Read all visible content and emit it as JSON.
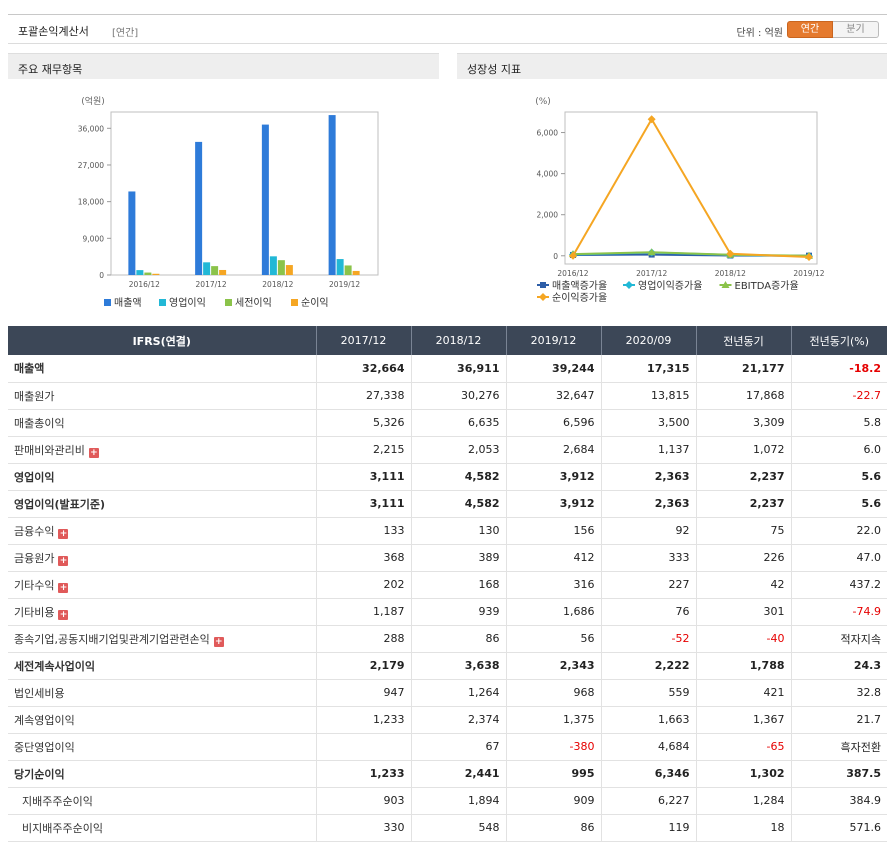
{
  "header": {
    "title": "포괄손익계산서",
    "subtitle": "[연간]",
    "unit_label": "단위 : 억원",
    "toggle_annual": "연간",
    "toggle_quarter": "분기"
  },
  "left_panel_title": "주요 재무항목",
  "right_panel_title": "성장성 지표",
  "chart_data": [
    {
      "type": "bar",
      "ylabel": "(억원)",
      "categories": [
        "2016/12",
        "2017/12",
        "2018/12",
        "2019/12"
      ],
      "ylim": [
        0,
        40000
      ],
      "yticks": [
        0,
        9000,
        18000,
        27000,
        36000
      ],
      "ytick_labels": [
        "0",
        "9,000",
        "18,000",
        "27,000",
        "36,000"
      ],
      "legend_position": "bottom",
      "grid": false,
      "series": [
        {
          "name": "매출액",
          "color": "#2e7bd9",
          "values": [
            20500,
            32664,
            36911,
            39244
          ]
        },
        {
          "name": "영업이익",
          "color": "#22b8d6",
          "values": [
            1200,
            3111,
            4582,
            3912
          ]
        },
        {
          "name": "세전이익",
          "color": "#8bc34a",
          "values": [
            600,
            2179,
            3638,
            2343
          ]
        },
        {
          "name": "순이익",
          "color": "#f5a623",
          "values": [
            300,
            1233,
            2441,
            995
          ]
        }
      ]
    },
    {
      "type": "line",
      "ylabel": "(%)",
      "categories": [
        "2016/12",
        "2017/12",
        "2018/12",
        "2019/12"
      ],
      "ylim": [
        -400,
        7000
      ],
      "yticks": [
        0,
        2000,
        4000,
        6000
      ],
      "ytick_labels": [
        "0",
        "2,000",
        "4,000",
        "6,000"
      ],
      "legend_position": "bottom",
      "grid": false,
      "series": [
        {
          "name": "매출액증가율",
          "color": "#2e5ea8",
          "marker": "square",
          "values": [
            40,
            59,
            13,
            6
          ]
        },
        {
          "name": "영업이익증가율",
          "color": "#22b8d6",
          "marker": "diamond",
          "values": [
            60,
            160,
            47,
            -15
          ]
        },
        {
          "name": "EBITDA증가율",
          "color": "#8bc34a",
          "marker": "triangle",
          "values": [
            80,
            170,
            50,
            0
          ]
        },
        {
          "name": "순이익증가율",
          "color": "#f5a623",
          "marker": "circle",
          "values": [
            0,
            6650,
            98,
            -59
          ]
        }
      ]
    }
  ],
  "table": {
    "headers": [
      "IFRS(연결)",
      "2017/12",
      "2018/12",
      "2019/12",
      "2020/09",
      "전년동기",
      "전년동기(%)"
    ],
    "rows": [
      {
        "label": "매출액",
        "values": [
          "32,664",
          "36,911",
          "39,244",
          "17,315",
          "21,177",
          "-18.2"
        ],
        "bold": true,
        "plus": false,
        "indent": false
      },
      {
        "label": "매출원가",
        "values": [
          "27,338",
          "30,276",
          "32,647",
          "13,815",
          "17,868",
          "-22.7"
        ],
        "bold": false,
        "plus": false,
        "indent": false
      },
      {
        "label": "매출총이익",
        "values": [
          "5,326",
          "6,635",
          "6,596",
          "3,500",
          "3,309",
          "5.8"
        ],
        "bold": false,
        "plus": false,
        "indent": false
      },
      {
        "label": "판매비와관리비",
        "values": [
          "2,215",
          "2,053",
          "2,684",
          "1,137",
          "1,072",
          "6.0"
        ],
        "bold": false,
        "plus": true,
        "indent": false
      },
      {
        "label": "영업이익",
        "values": [
          "3,111",
          "4,582",
          "3,912",
          "2,363",
          "2,237",
          "5.6"
        ],
        "bold": true,
        "plus": false,
        "indent": false
      },
      {
        "label": "영업이익(발표기준)",
        "values": [
          "3,111",
          "4,582",
          "3,912",
          "2,363",
          "2,237",
          "5.6"
        ],
        "bold": true,
        "plus": false,
        "indent": false
      },
      {
        "label": "금융수익",
        "values": [
          "133",
          "130",
          "156",
          "92",
          "75",
          "22.0"
        ],
        "bold": false,
        "plus": true,
        "indent": false
      },
      {
        "label": "금융원가",
        "values": [
          "368",
          "389",
          "412",
          "333",
          "226",
          "47.0"
        ],
        "bold": false,
        "plus": true,
        "indent": false
      },
      {
        "label": "기타수익",
        "values": [
          "202",
          "168",
          "316",
          "227",
          "42",
          "437.2"
        ],
        "bold": false,
        "plus": true,
        "indent": false
      },
      {
        "label": "기타비용",
        "values": [
          "1,187",
          "939",
          "1,686",
          "76",
          "301",
          "-74.9"
        ],
        "bold": false,
        "plus": true,
        "indent": false
      },
      {
        "label": "종속기업,공동지배기업및관계기업관련손익",
        "values": [
          "288",
          "86",
          "56",
          "-52",
          "-40",
          "적자지속"
        ],
        "bold": false,
        "plus": true,
        "indent": false
      },
      {
        "label": "세전계속사업이익",
        "values": [
          "2,179",
          "3,638",
          "2,343",
          "2,222",
          "1,788",
          "24.3"
        ],
        "bold": true,
        "plus": false,
        "indent": false
      },
      {
        "label": "법인세비용",
        "values": [
          "947",
          "1,264",
          "968",
          "559",
          "421",
          "32.8"
        ],
        "bold": false,
        "plus": false,
        "indent": false
      },
      {
        "label": "계속영업이익",
        "values": [
          "1,233",
          "2,374",
          "1,375",
          "1,663",
          "1,367",
          "21.7"
        ],
        "bold": false,
        "plus": false,
        "indent": false
      },
      {
        "label": "중단영업이익",
        "values": [
          "",
          "67",
          "-380",
          "4,684",
          "-65",
          "흑자전환"
        ],
        "bold": false,
        "plus": false,
        "indent": false
      },
      {
        "label": "당기순이익",
        "values": [
          "1,233",
          "2,441",
          "995",
          "6,346",
          "1,302",
          "387.5"
        ],
        "bold": true,
        "plus": false,
        "indent": false
      },
      {
        "label": "지배주주순이익",
        "values": [
          "903",
          "1,894",
          "909",
          "6,227",
          "1,284",
          "384.9"
        ],
        "bold": false,
        "plus": false,
        "indent": true
      },
      {
        "label": "비지배주주순이익",
        "values": [
          "330",
          "548",
          "86",
          "119",
          "18",
          "571.6"
        ],
        "bold": false,
        "plus": false,
        "indent": true
      }
    ]
  }
}
